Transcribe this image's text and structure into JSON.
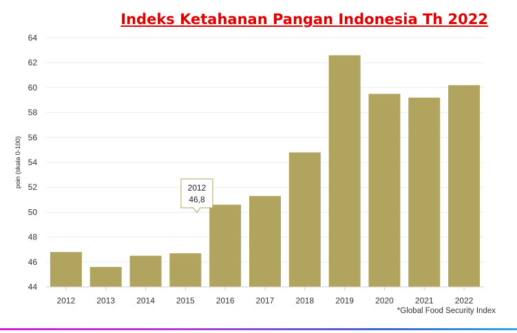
{
  "chart_data": {
    "type": "bar",
    "title": "Indeks Ketahanan Pangan Indonesia Th 2022",
    "ylabel": "poin (skala 0-100)",
    "xlabel": "",
    "categories": [
      "2012",
      "2013",
      "2014",
      "2015",
      "2016",
      "2017",
      "2018",
      "2019",
      "2020",
      "2021",
      "2022"
    ],
    "values": [
      46.8,
      45.6,
      46.5,
      46.7,
      50.6,
      51.3,
      54.8,
      62.6,
      59.5,
      59.2,
      60.2
    ],
    "ylim": [
      44,
      64
    ],
    "yticks": [
      "44",
      "46",
      "48",
      "50",
      "52",
      "54",
      "56",
      "58",
      "60",
      "62",
      "64"
    ],
    "grid": true,
    "bar_color": "#b0a45f",
    "title_color": "#e00000",
    "tooltip": {
      "category": "2012",
      "value_label": "46,8"
    },
    "source_note": "*Global Food Security Index"
  }
}
